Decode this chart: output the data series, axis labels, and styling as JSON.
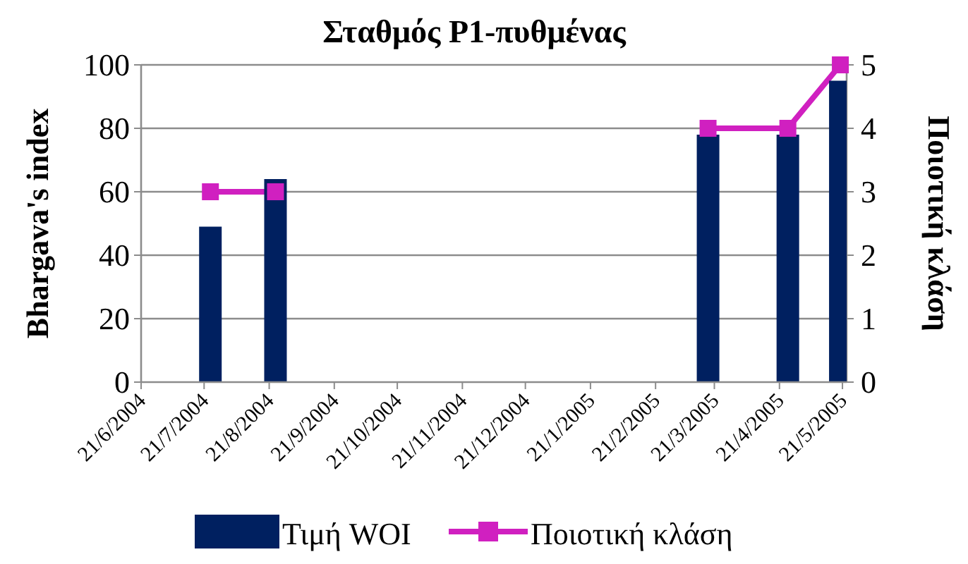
{
  "chart_data": {
    "type": "bar",
    "title": "Σταθμός P1-πυθμένας",
    "ylabel": "Bhargava's index",
    "y2label": "Ποιοτική κλάση",
    "x": [
      "2004-07-24",
      "2004-08-24",
      "2005-03-18",
      "2005-04-25",
      "2005-05-20"
    ],
    "series": [
      {
        "name": "Τιμή WOI",
        "type": "bar",
        "color": "#002060",
        "values": [
          49,
          64,
          78,
          78,
          95
        ]
      },
      {
        "name": "Ποιοτική κλάση",
        "type": "line",
        "axis": "y2",
        "color": "#d020c0",
        "marker": "square",
        "x": [
          "2004-07-24",
          "2004-08-24",
          "2004-12-21",
          "2005-03-18",
          "2005-04-25",
          "2005-05-20"
        ],
        "values": [
          3,
          3,
          null,
          4,
          4,
          5
        ]
      }
    ],
    "xlim": [
      "2004-06-21",
      "2005-05-23"
    ],
    "xticks": [
      {
        "value": "2004-06-21",
        "label": "21/6/2004"
      },
      {
        "value": "2004-07-21",
        "label": "21/7/2004"
      },
      {
        "value": "2004-08-21",
        "label": "21/8/2004"
      },
      {
        "value": "2004-09-21",
        "label": "21/9/2004"
      },
      {
        "value": "2004-10-21",
        "label": "21/10/2004"
      },
      {
        "value": "2004-11-21",
        "label": "21/11/2004"
      },
      {
        "value": "2004-12-21",
        "label": "21/12/2004"
      },
      {
        "value": "2005-01-21",
        "label": "21/1/2005"
      },
      {
        "value": "2005-02-21",
        "label": "21/2/2005"
      },
      {
        "value": "2005-03-21",
        "label": "21/3/2005"
      },
      {
        "value": "2005-04-21",
        "label": "21/4/2005"
      },
      {
        "value": "2005-05-21",
        "label": "21/5/2005"
      }
    ],
    "ylim": [
      0,
      100
    ],
    "yticks": [
      0,
      20,
      40,
      60,
      80,
      100
    ],
    "y2lim": [
      0,
      5
    ],
    "y2ticks": [
      0,
      1,
      2,
      3,
      4,
      5
    ],
    "grid": "y",
    "legend": "bottom"
  }
}
